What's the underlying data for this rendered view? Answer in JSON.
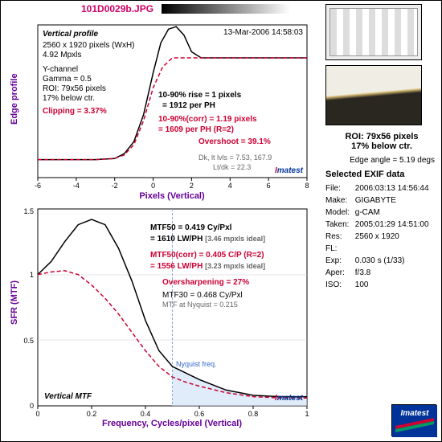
{
  "filename": "101D0029b.JPG",
  "timestamp": "13-Mar-2006 14:58:03",
  "edge_chart": {
    "type": "line",
    "title_bold": "Vertical profile",
    "info_lines": [
      "2560 x 1920 pixels (WxH)",
      "4.92 Mpxls",
      "Y-channel",
      "Gamma = 0.5",
      "ROI: 79x56 pixels",
      "17% below ctr."
    ],
    "clipping_label": "Clipping =   3.37%",
    "y_label": "Edge profile",
    "x_label": "Pixels (Vertical)",
    "xlim": [
      -6,
      8
    ],
    "xtick_step": 2,
    "ylim": [
      0,
      255
    ],
    "black_curve": [
      [
        -6,
        30
      ],
      [
        -5,
        30
      ],
      [
        -4,
        30
      ],
      [
        -3,
        30
      ],
      [
        -2,
        32
      ],
      [
        -1.5,
        40
      ],
      [
        -1,
        60
      ],
      [
        -0.5,
        105
      ],
      [
        0,
        175
      ],
      [
        0.4,
        225
      ],
      [
        0.8,
        248
      ],
      [
        1.2,
        252
      ],
      [
        1.6,
        238
      ],
      [
        2,
        210
      ],
      [
        2.5,
        200
      ],
      [
        3,
        200
      ],
      [
        4,
        200
      ],
      [
        5,
        200
      ],
      [
        6,
        200
      ],
      [
        7,
        200
      ],
      [
        8,
        200
      ]
    ],
    "red_curve": [
      [
        -6,
        30
      ],
      [
        -5,
        30
      ],
      [
        -4,
        30
      ],
      [
        -3,
        30
      ],
      [
        -2,
        32
      ],
      [
        -1.5,
        38
      ],
      [
        -1,
        55
      ],
      [
        -0.5,
        95
      ],
      [
        0,
        150
      ],
      [
        0.5,
        185
      ],
      [
        1,
        200
      ],
      [
        1.5,
        200
      ],
      [
        2,
        200
      ],
      [
        3,
        200
      ],
      [
        4,
        200
      ],
      [
        5,
        200
      ],
      [
        6,
        200
      ],
      [
        7,
        200
      ],
      [
        8,
        200
      ]
    ],
    "rise_black1": "10-90% rise = 1 pixels",
    "rise_black2": "= 1912 per PH",
    "rise_red1": "10-90%(corr) = 1.19 pixels",
    "rise_red2": "= 1609 per PH   (R=2)",
    "overshoot": "Overshoot = 39.1%",
    "dk_lt": "Dk, lt lvls = 7.53, 167.9",
    "lt_dk": "Lt/dk = 22.3",
    "colors": {
      "black": "#000000",
      "red": "#cc0033",
      "bg": "#ffffff"
    }
  },
  "mtf_chart": {
    "type": "line",
    "title_bold": "Vertical MTF",
    "y_label": "SFR (MTF)",
    "x_label": "Frequency, Cycles/pixel (Vertical)",
    "xlim": [
      0,
      1
    ],
    "xtick_step": 0.2,
    "ylim": [
      0,
      1.5
    ],
    "ytick_step": 0.5,
    "black_curve": [
      [
        0,
        1.0
      ],
      [
        0.05,
        1.1
      ],
      [
        0.1,
        1.25
      ],
      [
        0.15,
        1.38
      ],
      [
        0.2,
        1.42
      ],
      [
        0.25,
        1.38
      ],
      [
        0.3,
        1.2
      ],
      [
        0.35,
        0.95
      ],
      [
        0.4,
        0.65
      ],
      [
        0.45,
        0.42
      ],
      [
        0.5,
        0.3
      ],
      [
        0.55,
        0.25
      ],
      [
        0.6,
        0.2
      ],
      [
        0.7,
        0.12
      ],
      [
        0.8,
        0.08
      ],
      [
        0.9,
        0.07
      ],
      [
        1.0,
        0.07
      ]
    ],
    "red_curve": [
      [
        0,
        1.0
      ],
      [
        0.05,
        1.02
      ],
      [
        0.1,
        1.03
      ],
      [
        0.15,
        1.0
      ],
      [
        0.2,
        0.92
      ],
      [
        0.25,
        0.82
      ],
      [
        0.3,
        0.7
      ],
      [
        0.35,
        0.56
      ],
      [
        0.4,
        0.42
      ],
      [
        0.45,
        0.3
      ],
      [
        0.5,
        0.22
      ],
      [
        0.55,
        0.18
      ],
      [
        0.6,
        0.15
      ],
      [
        0.7,
        0.1
      ],
      [
        0.8,
        0.07
      ],
      [
        0.9,
        0.06
      ],
      [
        1.0,
        0.06
      ]
    ],
    "mtf50_black": "MTF50 = 0.419 Cy/Pxl",
    "mtf50_black2": "= 1610 LW/PH",
    "mtf50_black_ideal": "[3.46 mpxls ideal]",
    "mtf50_red": "MTF50(corr) = 0.405 C/P",
    "mtf50_red_r2": "(R=2)",
    "mtf50_red2": "= 1556 LW/PH",
    "mtf50_red_ideal": "[3.23 mpxls ideal]",
    "oversharp": "Oversharpening = 27%",
    "mtf30": "MTF30 = 0.468 Cy/Pxl",
    "mtf_nyq": "MTF at Nyquist = 0.215",
    "nyquist_label": "Nyquist freq.",
    "nyquist_x": 0.5
  },
  "roi": {
    "line1": "ROI: 79x56 pixels",
    "line2": "17% below ctr."
  },
  "edge_angle": "Edge angle = 5.19 degs",
  "exif": {
    "title": "Selected EXIF data",
    "rows": [
      {
        "k": "File:",
        "v": "2006:03:13 14:56:44"
      },
      {
        "k": "Make:",
        "v": "GIGABYTE"
      },
      {
        "k": "Model:",
        "v": "g-CAM"
      },
      {
        "k": "Taken:",
        "v": "2005:01:29 14:51:00"
      },
      {
        "k": "Res:",
        "v": "2560 x 1920"
      },
      {
        "k": "FL:",
        "v": ""
      },
      {
        "k": "Exp:",
        "v": "0.030 s  (1/33)"
      },
      {
        "k": "Aper:",
        "v": "f/3.8"
      },
      {
        "k": "ISO:",
        "v": "100"
      }
    ]
  },
  "imatest": "Imatest"
}
